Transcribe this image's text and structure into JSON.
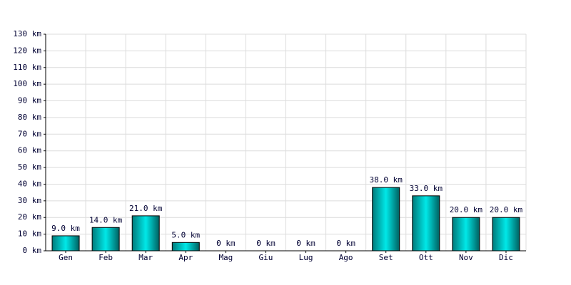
{
  "chart_data": {
    "type": "bar",
    "categories": [
      "Gen",
      "Feb",
      "Mar",
      "Apr",
      "Mag",
      "Giu",
      "Lug",
      "Ago",
      "Set",
      "Ott",
      "Nov",
      "Dic"
    ],
    "values": [
      9,
      14,
      21,
      5,
      0,
      0,
      0,
      0,
      38,
      33,
      20,
      20
    ],
    "value_labels": [
      "9.0 km",
      "14.0 km",
      "21.0 km",
      "5.0 km",
      "0 km",
      "0 km",
      "0 km",
      "0 km",
      "38.0 km",
      "33.0 km",
      "20.0 km",
      "20.0 km"
    ],
    "color": "#00e8e8",
    "ylim": [
      0,
      130
    ],
    "yticks": [
      {
        "value": 0,
        "label": "0 km"
      },
      {
        "value": 10,
        "label": "10 km"
      },
      {
        "value": 20,
        "label": "20 km"
      },
      {
        "value": 30,
        "label": "30 km"
      },
      {
        "value": 40,
        "label": "40 km"
      },
      {
        "value": 50,
        "label": "50 km"
      },
      {
        "value": 60,
        "label": "60 km"
      },
      {
        "value": 70,
        "label": "70 km"
      },
      {
        "value": 80,
        "label": "80 km"
      },
      {
        "value": 90,
        "label": "90 km"
      },
      {
        "value": 100,
        "label": "100 km"
      },
      {
        "value": 110,
        "label": "110 km"
      },
      {
        "value": 120,
        "label": "120 km"
      },
      {
        "value": 130,
        "label": "130 km"
      }
    ],
    "grid": true
  }
}
